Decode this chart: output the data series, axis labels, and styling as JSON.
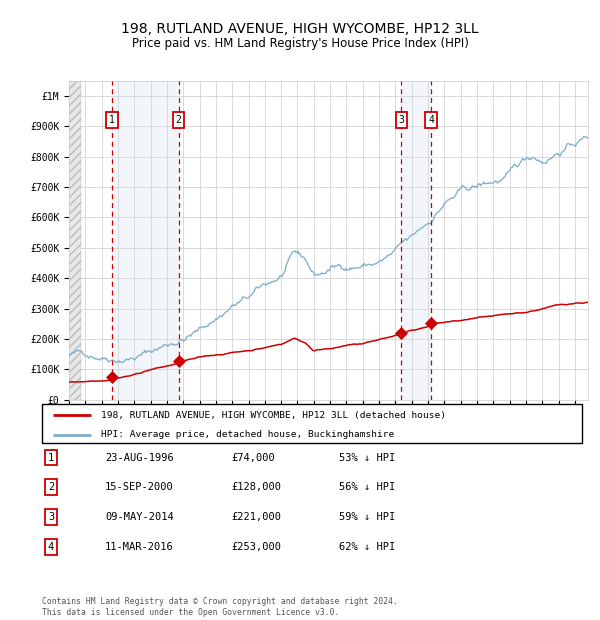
{
  "title": "198, RUTLAND AVENUE, HIGH WYCOMBE, HP12 3LL",
  "subtitle": "Price paid vs. HM Land Registry's House Price Index (HPI)",
  "title_fontsize": 10,
  "subtitle_fontsize": 8.5,
  "ylabel_ticks": [
    "£0",
    "£100K",
    "£200K",
    "£300K",
    "£400K",
    "£500K",
    "£600K",
    "£700K",
    "£800K",
    "£900K",
    "£1M"
  ],
  "ytick_values": [
    0,
    100000,
    200000,
    300000,
    400000,
    500000,
    600000,
    700000,
    800000,
    900000,
    1000000
  ],
  "ylim": [
    0,
    1050000
  ],
  "xlim_start": 1994.0,
  "xlim_end": 2025.8,
  "sales": [
    {
      "num": 1,
      "date_str": "23-AUG-1996",
      "date_x": 1996.64,
      "price": 74000,
      "hpi_pct": "53% ↓ HPI"
    },
    {
      "num": 2,
      "date_str": "15-SEP-2000",
      "date_x": 2000.71,
      "price": 128000,
      "hpi_pct": "56% ↓ HPI"
    },
    {
      "num": 3,
      "date_str": "09-MAY-2014",
      "date_x": 2014.36,
      "price": 221000,
      "hpi_pct": "59% ↓ HPI"
    },
    {
      "num": 4,
      "date_str": "11-MAR-2016",
      "date_x": 2016.19,
      "price": 253000,
      "hpi_pct": "62% ↓ HPI"
    }
  ],
  "red_line_color": "#cc0000",
  "blue_line_color": "#7aadcc",
  "grid_color": "#cccccc",
  "vline_color": "#cc0000",
  "shade_color": "#ccddf0",
  "background_color": "#ffffff",
  "legend_label_red": "198, RUTLAND AVENUE, HIGH WYCOMBE, HP12 3LL (detached house)",
  "legend_label_blue": "HPI: Average price, detached house, Buckinghamshire",
  "footnote": "Contains HM Land Registry data © Crown copyright and database right 2024.\nThis data is licensed under the Open Government Licence v3.0.",
  "table_rows": [
    [
      "1",
      "23-AUG-1996",
      "£74,000",
      "53% ↓ HPI"
    ],
    [
      "2",
      "15-SEP-2000",
      "£128,000",
      "56% ↓ HPI"
    ],
    [
      "3",
      "09-MAY-2014",
      "£221,000",
      "59% ↓ HPI"
    ],
    [
      "4",
      "11-MAR-2016",
      "£253,000",
      "62% ↓ HPI"
    ]
  ]
}
